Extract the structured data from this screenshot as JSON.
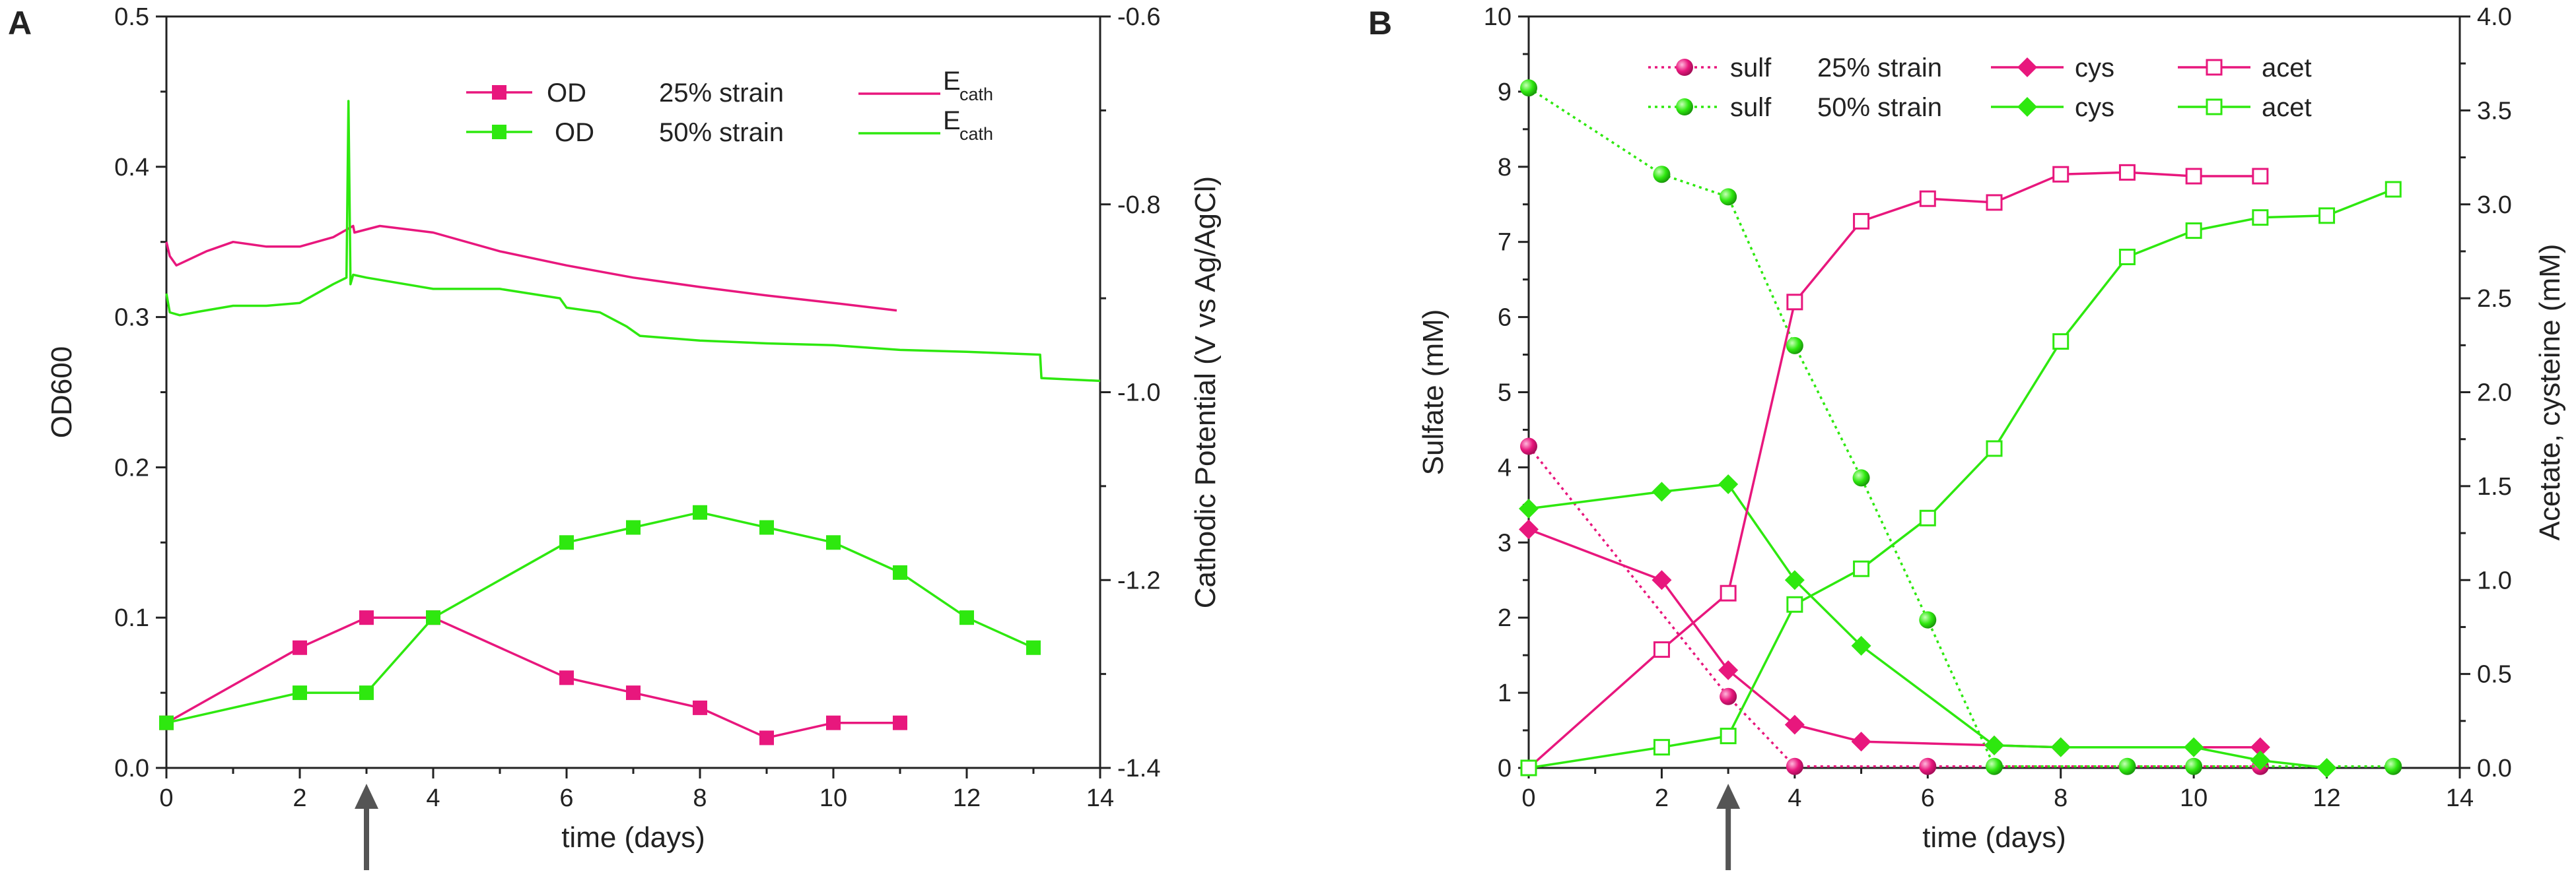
{
  "chart_data": [
    {
      "type": "line",
      "panel_label": "A",
      "xlabel": "time (days)",
      "ylabel": "OD600",
      "y2label": "Cathodic Potential (V vs Ag/AgCl)",
      "xlim": [
        0,
        14
      ],
      "ylim": [
        0,
        0.5
      ],
      "y2lim": [
        -1.4,
        -0.6
      ],
      "xticks": [
        "0",
        "2",
        "4",
        "6",
        "8",
        "10",
        "12",
        "14"
      ],
      "yticks": [
        "0.0",
        "0.1",
        "0.2",
        "0.3",
        "0.4",
        "0.5"
      ],
      "y2ticks": [
        "-1.4",
        "-1.2",
        "-1.0",
        "-0.8",
        "-0.6"
      ],
      "arrow_at_x": 3,
      "legend_position": "top-right",
      "legend": {
        "rows": [
          {
            "label": "OD",
            "strain": "25% strain",
            "e_label": "E",
            "e_sub": "cath"
          },
          {
            "label": "OD",
            "strain": "50% strain",
            "e_label": "E",
            "e_sub": "cath"
          }
        ]
      },
      "series": [
        {
          "name": "OD 25% strain",
          "axis": "left",
          "color": "#E8177D",
          "marker": "square-filled",
          "x": [
            0,
            2,
            3,
            4,
            6,
            7,
            8,
            9,
            10,
            11
          ],
          "values": [
            0.03,
            0.08,
            0.1,
            0.1,
            0.06,
            0.05,
            0.04,
            0.02,
            0.03,
            0.03
          ]
        },
        {
          "name": "OD 50% strain",
          "axis": "left",
          "color": "#2EE80F",
          "marker": "square-filled",
          "x": [
            0,
            2,
            3,
            4,
            6,
            7,
            8,
            9,
            10,
            11,
            12,
            13
          ],
          "values": [
            0.03,
            0.05,
            0.05,
            0.1,
            0.15,
            0.16,
            0.17,
            0.16,
            0.15,
            0.13,
            0.1,
            0.08
          ]
        },
        {
          "name": "Ecath 25% strain",
          "axis": "right",
          "color": "#E8177D",
          "marker": "none",
          "x": [
            0,
            0.05,
            0.15,
            0.3,
            0.6,
            1.0,
            1.5,
            2.0,
            2.5,
            2.8,
            2.82,
            3.2,
            4.0,
            5.0,
            6.0,
            7.0,
            8.0,
            9.0,
            10.0,
            10.95
          ],
          "values": [
            -0.84,
            -0.855,
            -0.865,
            -0.86,
            -0.85,
            -0.84,
            -0.845,
            -0.845,
            -0.835,
            -0.823,
            -0.83,
            -0.823,
            -0.83,
            -0.85,
            -0.865,
            -0.878,
            -0.888,
            -0.897,
            -0.905,
            -0.913
          ]
        },
        {
          "name": "Ecath 50% strain",
          "axis": "right",
          "color": "#2EE80F",
          "marker": "none",
          "x": [
            0,
            0.05,
            0.2,
            0.5,
            1.0,
            1.5,
            2.0,
            2.5,
            2.7,
            2.73,
            2.76,
            2.8,
            3.0,
            4.0,
            5.0,
            5.9,
            6.0,
            6.5,
            6.9,
            7.1,
            8.0,
            9.0,
            10.0,
            11.0,
            12.0,
            13.1,
            13.12,
            14.0
          ],
          "values": [
            -0.895,
            -0.915,
            -0.918,
            -0.914,
            -0.908,
            -0.908,
            -0.905,
            -0.885,
            -0.878,
            -0.69,
            -0.885,
            -0.875,
            -0.878,
            -0.89,
            -0.89,
            -0.9,
            -0.91,
            -0.915,
            -0.93,
            -0.94,
            -0.945,
            -0.948,
            -0.95,
            -0.955,
            -0.957,
            -0.96,
            -0.985,
            -0.988
          ]
        }
      ]
    },
    {
      "type": "line",
      "panel_label": "B",
      "xlabel": "time (days)",
      "ylabel": "Sulfate (mM)",
      "y2label": "Acetate, cysteine (mM)",
      "xlim": [
        0,
        14
      ],
      "ylim": [
        0,
        10
      ],
      "y2lim": [
        0,
        4
      ],
      "xticks": [
        "0",
        "2",
        "4",
        "6",
        "8",
        "10",
        "12",
        "14"
      ],
      "yticks": [
        "0",
        "1",
        "2",
        "3",
        "4",
        "5",
        "6",
        "7",
        "8",
        "9",
        "10"
      ],
      "y2ticks": [
        "0.0",
        "0.5",
        "1.0",
        "1.5",
        "2.0",
        "2.5",
        "3.0",
        "3.5",
        "4.0"
      ],
      "arrow_at_x": 3,
      "legend_position": "top",
      "legend": {
        "rows": [
          {
            "sulf": "sulf",
            "strain": "25% strain",
            "cys": "cys",
            "acet": "acet"
          },
          {
            "sulf": "sulf",
            "strain": "50% strain",
            "cys": "cys",
            "acet": "acet"
          }
        ]
      },
      "series": [
        {
          "name": "sulf 25% strain",
          "axis": "left",
          "color": "#E8177D",
          "marker": "sphere",
          "dashed": true,
          "x": [
            0,
            3,
            4,
            6,
            11
          ],
          "values": [
            4.28,
            0.95,
            0.02,
            0.02,
            0.02
          ]
        },
        {
          "name": "sulf 50% strain",
          "axis": "left",
          "color": "#2EE80F",
          "marker": "sphere",
          "dashed": true,
          "x": [
            0,
            2,
            3,
            4,
            5,
            6,
            7,
            9,
            10,
            13
          ],
          "values": [
            9.05,
            7.9,
            7.6,
            5.62,
            3.86,
            1.97,
            0.02,
            0.02,
            0.02,
            0.02
          ]
        },
        {
          "name": "cys 25% strain",
          "axis": "right",
          "color": "#E8177D",
          "marker": "diamond-filled",
          "x": [
            0,
            2,
            3,
            4,
            5,
            7,
            8,
            11
          ],
          "values": [
            1.27,
            1.0,
            0.52,
            0.23,
            0.14,
            0.12,
            0.11,
            0.11
          ]
        },
        {
          "name": "cys 50% strain",
          "axis": "right",
          "color": "#2EE80F",
          "marker": "diamond-filled",
          "x": [
            0,
            2,
            3,
            4,
            5,
            7,
            8,
            10,
            11,
            12
          ],
          "values": [
            1.38,
            1.47,
            1.51,
            1.0,
            0.65,
            0.12,
            0.11,
            0.11,
            0.04,
            0.0
          ]
        },
        {
          "name": "acet 25% strain",
          "axis": "right",
          "color": "#E8177D",
          "marker": "square-open",
          "x": [
            0,
            2,
            3,
            4,
            5,
            6,
            7,
            8,
            9,
            10,
            11
          ],
          "values": [
            0.0,
            0.63,
            0.93,
            2.48,
            2.91,
            3.03,
            3.01,
            3.16,
            3.17,
            3.15,
            3.15
          ]
        },
        {
          "name": "acet 50% strain",
          "axis": "right",
          "color": "#2EE80F",
          "marker": "square-open",
          "x": [
            0,
            2,
            3,
            4,
            5,
            6,
            7,
            8,
            9,
            10,
            11,
            12,
            13
          ],
          "values": [
            0.0,
            0.11,
            0.17,
            0.87,
            1.06,
            1.33,
            1.7,
            2.27,
            2.72,
            2.86,
            2.93,
            2.94,
            3.08
          ]
        }
      ]
    }
  ]
}
